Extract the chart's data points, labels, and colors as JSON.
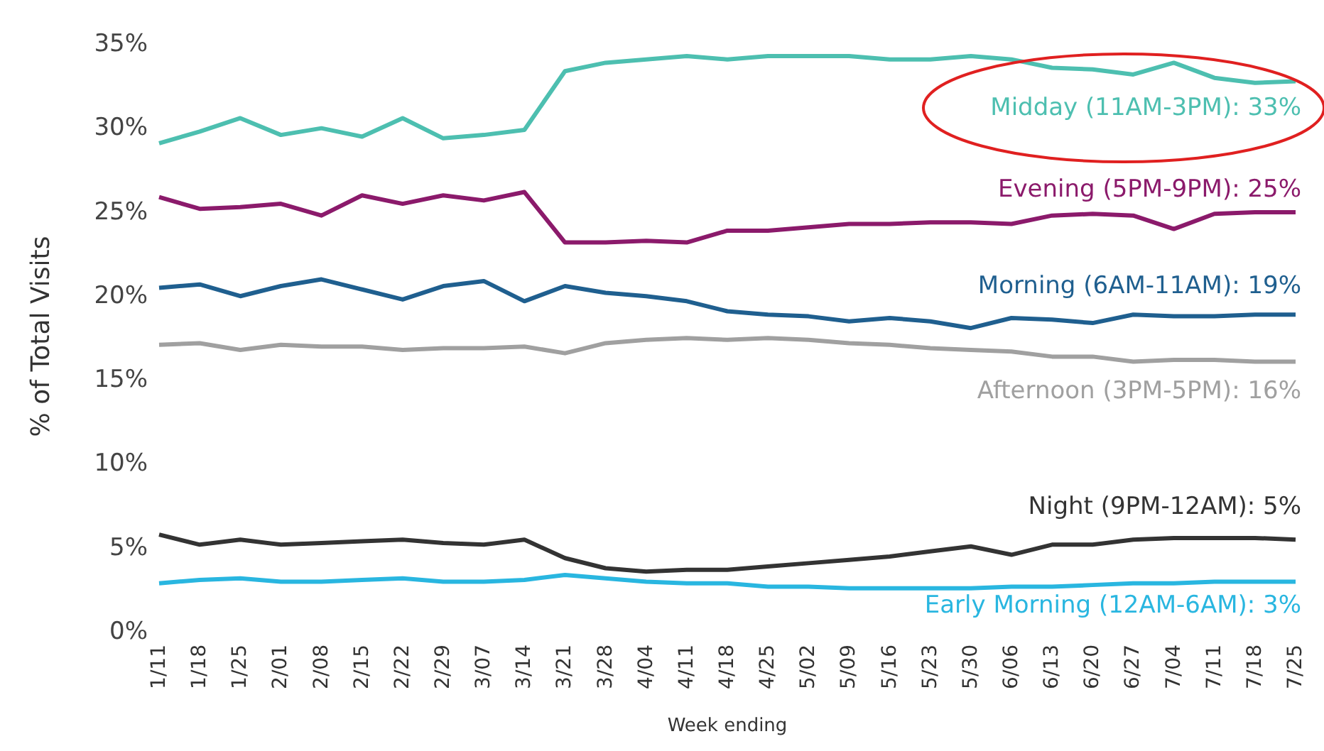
{
  "chart_data": {
    "type": "line",
    "xlabel": "Week ending",
    "ylabel": "% of Total Visits",
    "categories": [
      "1/11",
      "1/18",
      "1/25",
      "2/01",
      "2/08",
      "2/15",
      "2/22",
      "2/29",
      "3/07",
      "3/14",
      "3/21",
      "3/28",
      "4/04",
      "4/11",
      "4/18",
      "4/25",
      "5/02",
      "5/09",
      "5/16",
      "5/23",
      "5/30",
      "6/06",
      "6/13",
      "6/20",
      "6/27",
      "7/04",
      "7/11",
      "7/18",
      "7/25"
    ],
    "ylim": [
      0,
      35
    ],
    "yticks": [
      {
        "value": 0,
        "label": "0%"
      },
      {
        "value": 5,
        "label": "5%"
      },
      {
        "value": 10,
        "label": "10%"
      },
      {
        "value": 15,
        "label": "15%"
      },
      {
        "value": 20,
        "label": "20%"
      },
      {
        "value": 25,
        "label": "25%"
      },
      {
        "value": 30,
        "label": "30%"
      },
      {
        "value": 35,
        "label": "35%"
      }
    ],
    "grid": false,
    "marker": "none",
    "line_style": "solid",
    "series": [
      {
        "name": "Midday (11AM-3PM): 33%",
        "color": "#4dbfb0",
        "values": [
          29.0,
          29.7,
          30.5,
          29.5,
          29.9,
          29.4,
          30.5,
          29.3,
          29.5,
          29.8,
          33.3,
          33.8,
          34.0,
          34.2,
          34.0,
          34.2,
          34.2,
          34.2,
          34.0,
          34.0,
          34.2,
          34.0,
          33.5,
          33.4,
          33.1,
          33.8,
          32.9,
          32.6,
          32.7
        ]
      },
      {
        "name": "Evening (5PM-9PM): 25%",
        "color": "#8b1a6b",
        "values": [
          25.8,
          25.1,
          25.2,
          25.4,
          24.7,
          25.9,
          25.4,
          25.9,
          25.6,
          26.1,
          23.1,
          23.1,
          23.2,
          23.1,
          23.8,
          23.8,
          24.0,
          24.2,
          24.2,
          24.3,
          24.3,
          24.2,
          24.7,
          24.8,
          24.7,
          23.9,
          24.8,
          24.9,
          24.9
        ]
      },
      {
        "name": "Morning (6AM-11AM): 19%",
        "color": "#1f5f8f",
        "values": [
          20.4,
          20.6,
          19.9,
          20.5,
          20.9,
          20.3,
          19.7,
          20.5,
          20.8,
          19.6,
          20.5,
          20.1,
          19.9,
          19.6,
          19.0,
          18.8,
          18.7,
          18.4,
          18.6,
          18.4,
          18.0,
          18.6,
          18.5,
          18.3,
          18.8,
          18.7,
          18.7,
          18.8,
          18.8
        ]
      },
      {
        "name": "Afternoon (3PM-5PM): 16%",
        "color": "#a0a0a0",
        "values": [
          17.0,
          17.1,
          16.7,
          17.0,
          16.9,
          16.9,
          16.7,
          16.8,
          16.8,
          16.9,
          16.5,
          17.1,
          17.3,
          17.4,
          17.3,
          17.4,
          17.3,
          17.1,
          17.0,
          16.8,
          16.7,
          16.6,
          16.3,
          16.3,
          16.0,
          16.1,
          16.1,
          16.0,
          16.0
        ]
      },
      {
        "name": "Night (9PM-12AM): 5%",
        "color": "#333333",
        "values": [
          5.7,
          5.1,
          5.4,
          5.1,
          5.2,
          5.3,
          5.4,
          5.2,
          5.1,
          5.4,
          4.3,
          3.7,
          3.5,
          3.6,
          3.6,
          3.8,
          4.0,
          4.2,
          4.4,
          4.7,
          5.0,
          4.5,
          5.1,
          5.1,
          5.4,
          5.5,
          5.5,
          5.5,
          5.4
        ]
      },
      {
        "name": "Early Morning (12AM-6AM): 3%",
        "color": "#29b6e0",
        "values": [
          2.8,
          3.0,
          3.1,
          2.9,
          2.9,
          3.0,
          3.1,
          2.9,
          2.9,
          3.0,
          3.3,
          3.1,
          2.9,
          2.8,
          2.8,
          2.6,
          2.6,
          2.5,
          2.5,
          2.5,
          2.5,
          2.6,
          2.6,
          2.7,
          2.8,
          2.8,
          2.9,
          2.9,
          2.9
        ]
      }
    ]
  }
}
